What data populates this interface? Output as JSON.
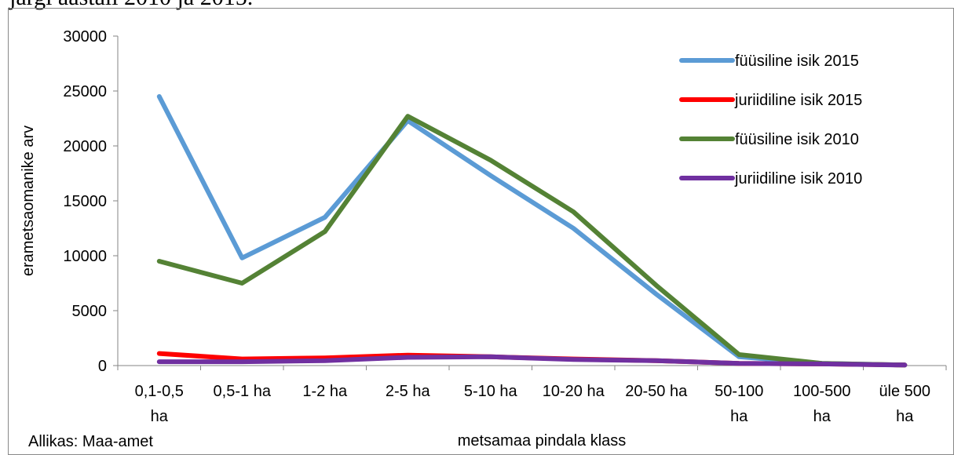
{
  "page": {
    "heading": "järgi aastali 2010 ja 2015.",
    "source": "Allikas: Maa-amet"
  },
  "chart_data": {
    "type": "line",
    "title": "",
    "xlabel": "metsamaa pindala klass",
    "ylabel": "erametsaomanike arv",
    "ylim": [
      0,
      30000
    ],
    "yticks": [
      0,
      5000,
      10000,
      15000,
      20000,
      25000,
      30000
    ],
    "grid": false,
    "legend_position": "top-right",
    "categories": [
      [
        "0,1-0,5",
        "ha"
      ],
      [
        "0,5-1 ha"
      ],
      [
        "1-2 ha"
      ],
      [
        "2-5 ha"
      ],
      [
        "5-10 ha"
      ],
      [
        "10-20 ha"
      ],
      [
        "20-50 ha"
      ],
      [
        "50-100",
        "ha"
      ],
      [
        "100-500",
        "ha"
      ],
      [
        "üle 500",
        "ha"
      ]
    ],
    "series": [
      {
        "name": "füüsiline isik 2015",
        "color": "#5b9bd5",
        "values": [
          24500,
          9800,
          13500,
          22300,
          17300,
          12500,
          6500,
          800,
          200,
          50
        ]
      },
      {
        "name": "juriidiline isik 2015",
        "color": "#ff0000",
        "values": [
          1100,
          600,
          700,
          950,
          800,
          600,
          450,
          200,
          150,
          60
        ]
      },
      {
        "name": "füüsiline isik 2010",
        "color": "#548235",
        "values": [
          9500,
          7500,
          12200,
          22700,
          18700,
          14000,
          7300,
          1000,
          200,
          50
        ]
      },
      {
        "name": "juriidiline isik 2010",
        "color": "#7030a0",
        "values": [
          350,
          350,
          450,
          750,
          800,
          550,
          450,
          200,
          150,
          50
        ]
      }
    ]
  }
}
